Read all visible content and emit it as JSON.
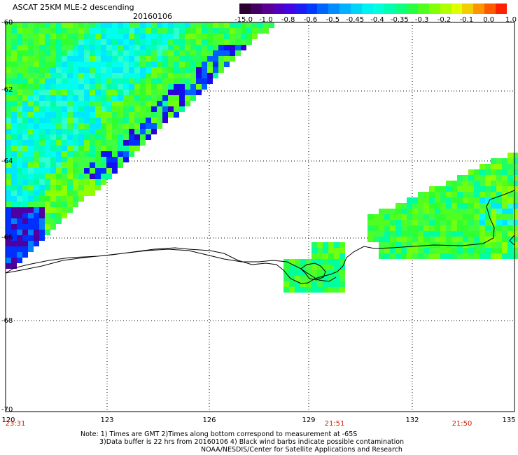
{
  "header": {
    "title": "ASCAT 25KM MLE-2 descending",
    "date": "20160106"
  },
  "colorbar": {
    "labels": [
      "-15.0",
      "-1.0",
      "-0.8",
      "-0.6",
      "-0.5",
      "-0.45",
      "-0.4",
      "-0.35",
      "-0.3",
      "-0.2",
      "-0.1",
      "0.0",
      "1.0"
    ],
    "colors": [
      "#2a0030",
      "#5a0090",
      "#4b00e0",
      "#0030ff",
      "#0080ff",
      "#00c8ff",
      "#00ffee",
      "#00ffa0",
      "#30ff30",
      "#90ff00",
      "#e8ff00",
      "#ff9000",
      "#ff2000"
    ]
  },
  "axes": {
    "lat_labels": [
      "-60",
      "-62",
      "-64",
      "-66",
      "-68",
      "-70"
    ],
    "lon_labels": [
      "120",
      "123",
      "126",
      "129",
      "132",
      "135"
    ],
    "time_labels": [
      "23:31",
      "21:51",
      "21:50"
    ]
  },
  "notes": {
    "line1": "Note: 1) Times are GMT 2)Times along bottom correspond to measurement at -65S",
    "line2": "3)Data buffer is 22 hrs from 20160106 4) Black wind barbs indicate possible contamination",
    "line3": "NOAA/NESDIS/Center for Satellite Applications and Research"
  }
}
